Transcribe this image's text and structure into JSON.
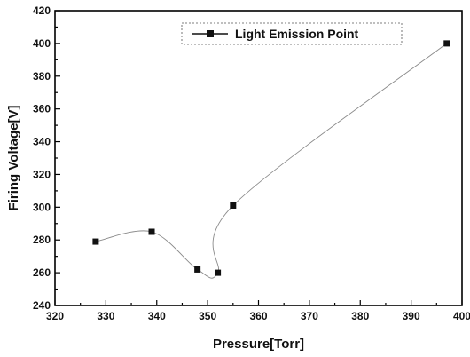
{
  "chart_data": {
    "type": "scatter",
    "title": "",
    "xlabel": "Pressure[Torr]",
    "ylabel": "Firing Voltage[V]",
    "xlim": [
      320,
      400
    ],
    "ylim": [
      240,
      420
    ],
    "x_ticks": [
      320,
      330,
      340,
      350,
      360,
      370,
      380,
      390,
      400
    ],
    "y_ticks": [
      240,
      260,
      280,
      300,
      320,
      340,
      360,
      380,
      400,
      420
    ],
    "grid": false,
    "legend_position": "top-right",
    "series": [
      {
        "name": "Light Emission Point",
        "marker": "square",
        "color": "#111111",
        "curve_color": "#8a8a8a",
        "x": [
          328,
          339,
          348,
          352,
          355,
          397
        ],
        "y": [
          279,
          285,
          262,
          260,
          301,
          400
        ]
      }
    ]
  }
}
